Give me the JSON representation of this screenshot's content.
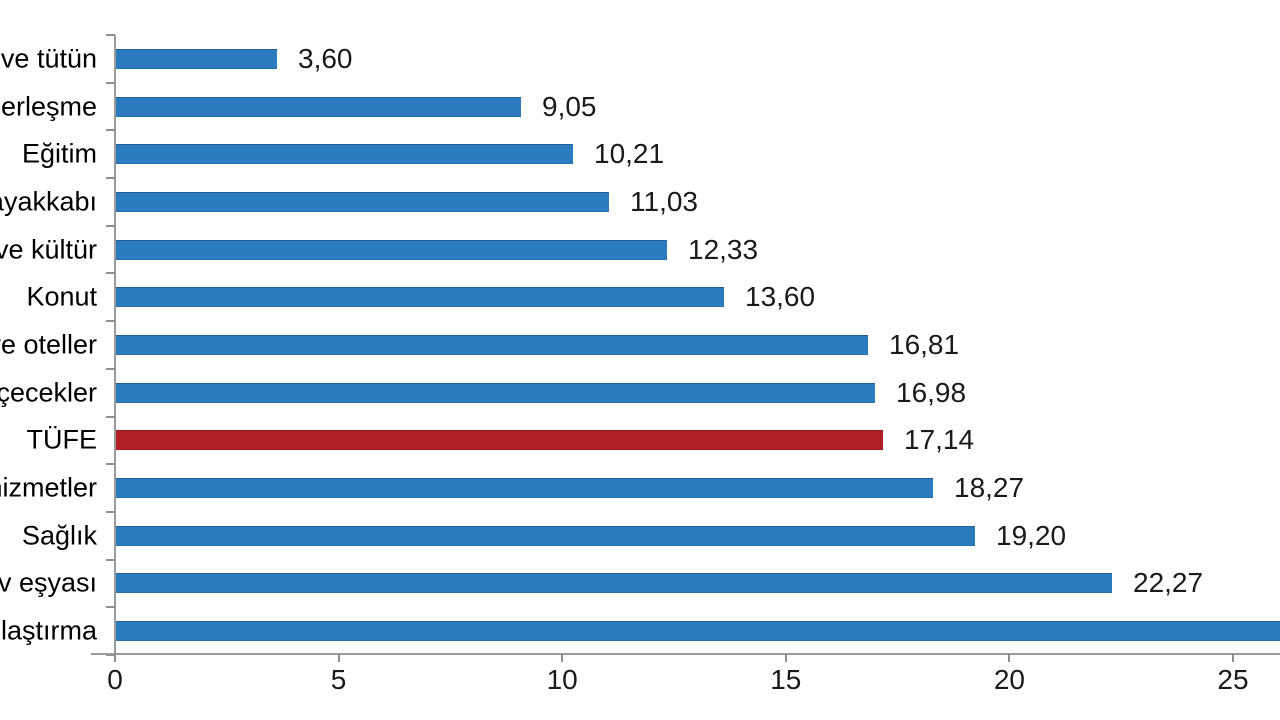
{
  "chart_data": {
    "type": "bar",
    "orientation": "horizontal",
    "title": "",
    "xlabel": "",
    "ylabel": "",
    "grid": false,
    "legend": false,
    "xlim": [
      0,
      26.1
    ],
    "xticks": [
      {
        "value": 0,
        "label": "0"
      },
      {
        "value": 5,
        "label": "5"
      },
      {
        "value": 10,
        "label": "10"
      },
      {
        "value": 15,
        "label": "15"
      },
      {
        "value": 20,
        "label": "20"
      },
      {
        "value": 25,
        "label": "25"
      }
    ],
    "bars": [
      {
        "label": "ve tütün",
        "value": 3.6,
        "value_label": "3,60",
        "highlight": false,
        "clipped_right": false
      },
      {
        "label": "berleşme",
        "value": 9.05,
        "value_label": "9,05",
        "highlight": false,
        "clipped_right": false
      },
      {
        "label": "Eğitim",
        "value": 10.21,
        "value_label": "10,21",
        "highlight": false,
        "clipped_right": false
      },
      {
        "label": "ayakkabı",
        "value": 11.03,
        "value_label": "11,03",
        "highlight": false,
        "clipped_right": false
      },
      {
        "label": "ve kültür",
        "value": 12.33,
        "value_label": "12,33",
        "highlight": false,
        "clipped_right": false
      },
      {
        "label": "Konut",
        "value": 13.6,
        "value_label": "13,60",
        "highlight": false,
        "clipped_right": false
      },
      {
        "label": "ve oteller",
        "value": 16.81,
        "value_label": "16,81",
        "highlight": false,
        "clipped_right": false
      },
      {
        "label": "çecekler",
        "value": 16.98,
        "value_label": "16,98",
        "highlight": false,
        "clipped_right": false
      },
      {
        "label": "TÜFE",
        "value": 17.14,
        "value_label": "17,14",
        "highlight": true,
        "clipped_right": false
      },
      {
        "label": "hizmetler",
        "value": 18.27,
        "value_label": "18,27",
        "highlight": false,
        "clipped_right": false
      },
      {
        "label": "Sağlık",
        "value": 19.2,
        "value_label": "19,20",
        "highlight": false,
        "clipped_right": false
      },
      {
        "label": "v eşyası",
        "value": 22.27,
        "value_label": "22,27",
        "highlight": false,
        "clipped_right": false
      },
      {
        "label": "laştırma",
        "value": null,
        "value_label": "",
        "highlight": false,
        "clipped_right": true
      }
    ],
    "colors": {
      "bar": "#2A7CBE",
      "highlight": "#B02024",
      "axis": "#9A9A9A",
      "category_text": "#000000",
      "value_text": "#1A1A1A",
      "tick_text": "#1A1A1A"
    }
  }
}
